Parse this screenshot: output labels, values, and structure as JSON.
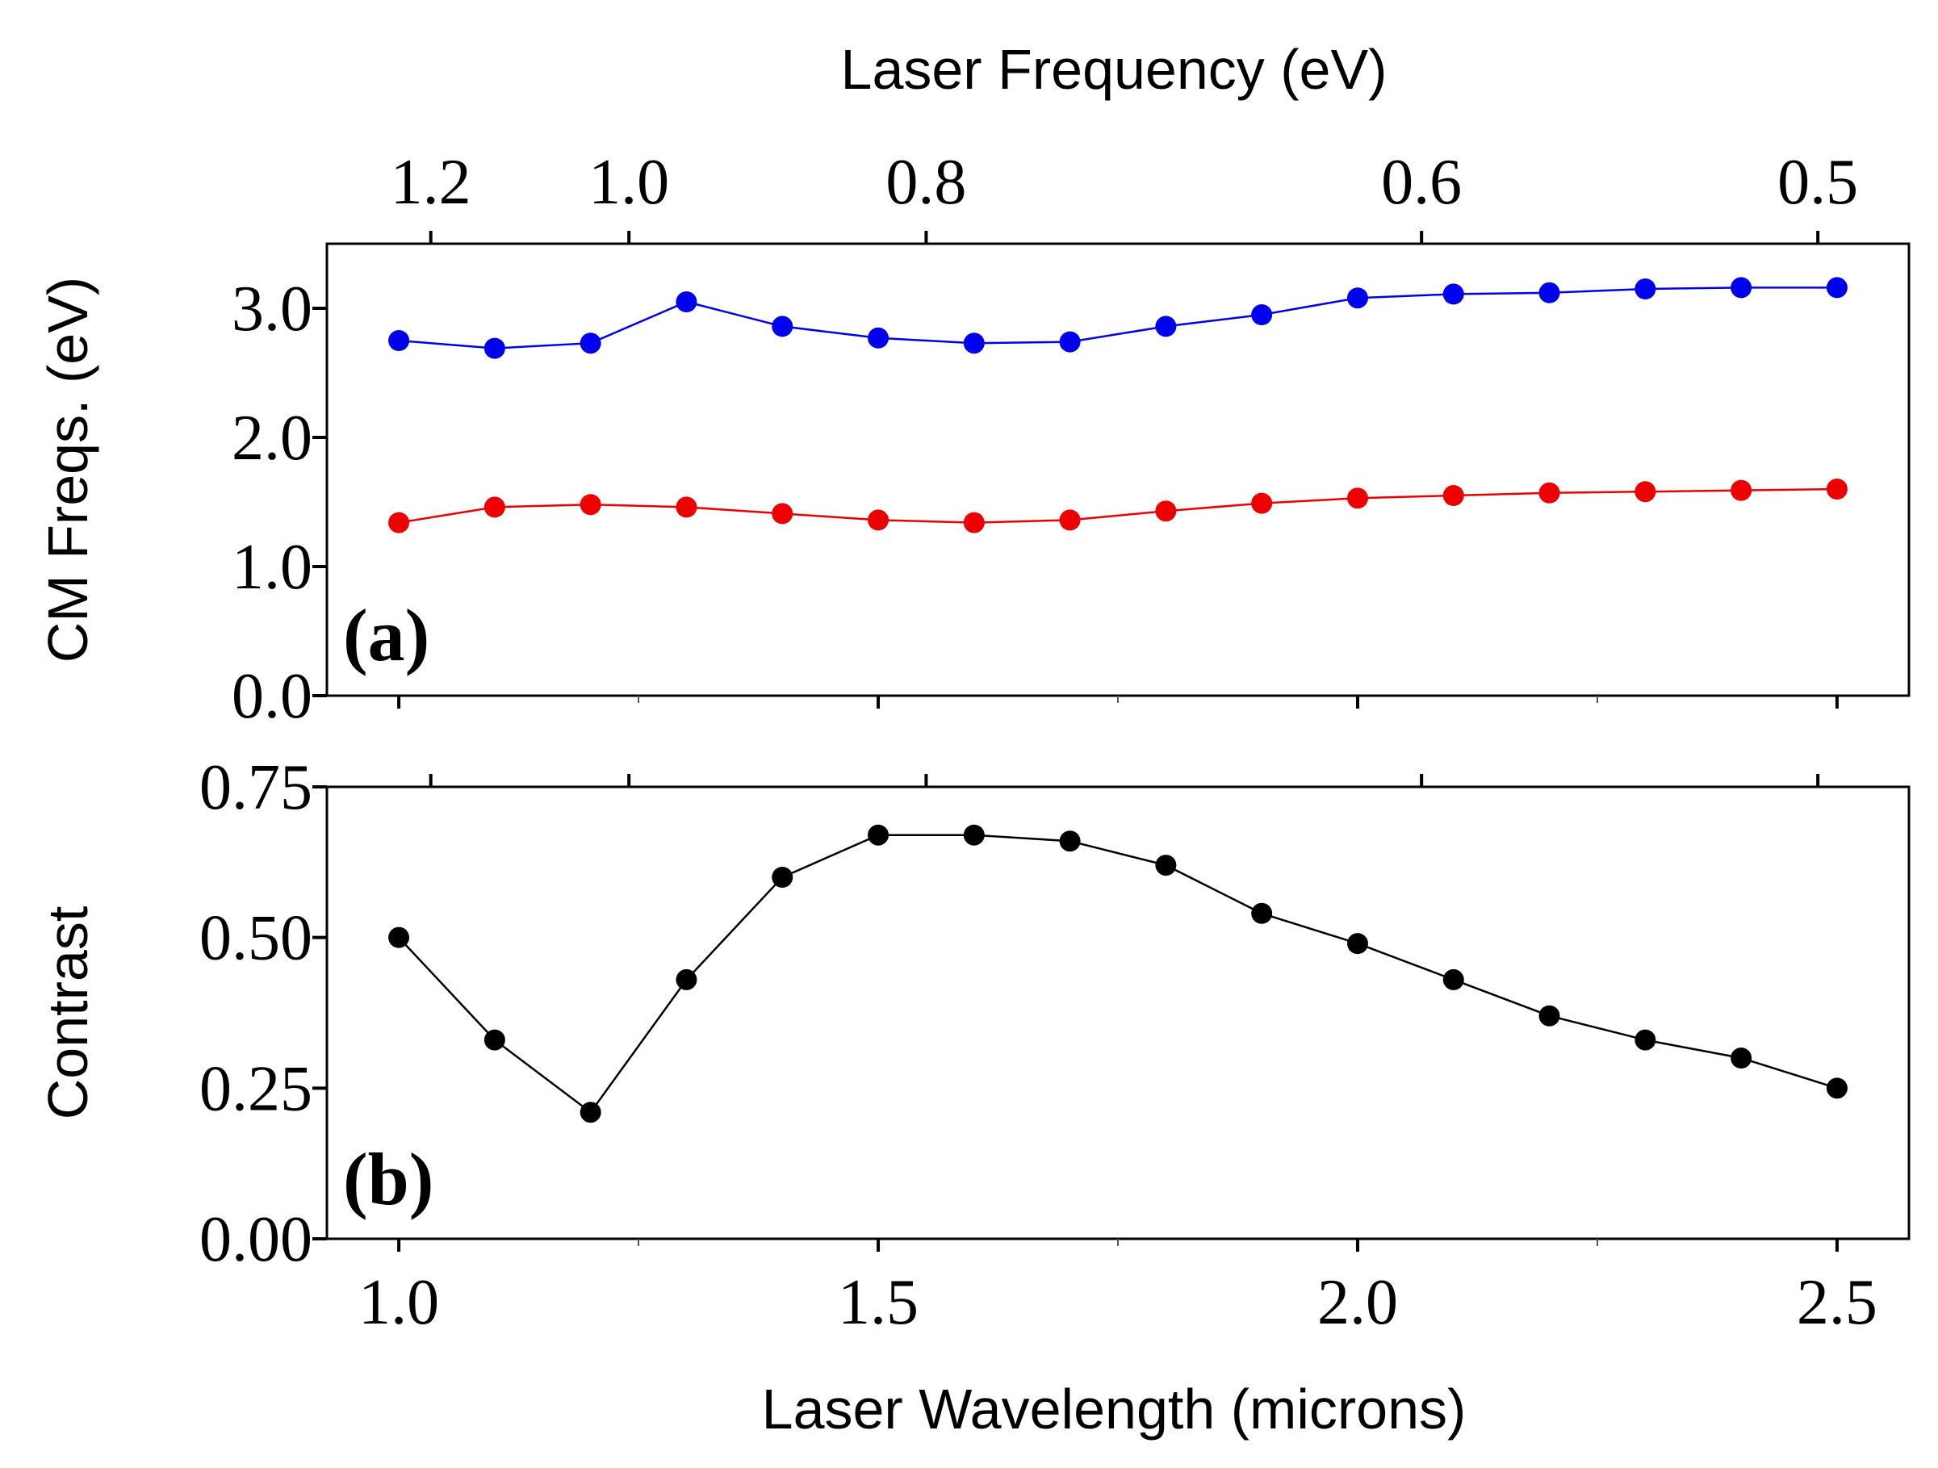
{
  "chart_data": [
    {
      "id": "panel-a",
      "type": "line",
      "panel_label": "(a)",
      "xlabel_top": "Laser Frequency (eV)",
      "top_ticks": [
        "1.2",
        "1.0",
        "0.8",
        "0.6",
        "0.5"
      ],
      "top_tick_values": [
        1.2,
        1.0,
        0.8,
        0.6,
        0.5
      ],
      "ylabel": "CM Freqs. (eV)",
      "xlim": [
        0.925,
        2.575
      ],
      "ylim": [
        0.0,
        3.5
      ],
      "yticks": [
        "0.0",
        "1.0",
        "2.0",
        "3.0"
      ],
      "ytick_values": [
        0.0,
        1.0,
        2.0,
        3.0
      ],
      "x": [
        1.0,
        1.1,
        1.2,
        1.3,
        1.4,
        1.5,
        1.6,
        1.7,
        1.8,
        1.9,
        2.0,
        2.1,
        2.2,
        2.3,
        2.4,
        2.5
      ],
      "series": [
        {
          "name": "upper CM frequency",
          "color": "#0000ee",
          "values": [
            2.75,
            2.69,
            2.73,
            3.05,
            2.86,
            2.77,
            2.73,
            2.74,
            2.86,
            2.95,
            3.08,
            3.11,
            3.12,
            3.15,
            3.16,
            3.16
          ]
        },
        {
          "name": "lower CM frequency",
          "color": "#ee0000",
          "values": [
            1.34,
            1.46,
            1.48,
            1.46,
            1.41,
            1.36,
            1.34,
            1.36,
            1.43,
            1.49,
            1.53,
            1.55,
            1.57,
            1.58,
            1.59,
            1.6
          ]
        }
      ]
    },
    {
      "id": "panel-b",
      "type": "line",
      "panel_label": "(b)",
      "ylabel": "Contrast",
      "xlabel": "Laser Wavelength (microns)",
      "xlim": [
        0.925,
        2.575
      ],
      "ylim": [
        0.0,
        0.75
      ],
      "xticks": [
        "1.0",
        "1.5",
        "2.0",
        "2.5"
      ],
      "xtick_values": [
        1.0,
        1.5,
        2.0,
        2.5
      ],
      "yticks": [
        "0.00",
        "0.25",
        "0.50",
        "0.75"
      ],
      "ytick_values": [
        0.0,
        0.25,
        0.5,
        0.75
      ],
      "x": [
        1.0,
        1.1,
        1.2,
        1.3,
        1.4,
        1.5,
        1.6,
        1.7,
        1.8,
        1.9,
        2.0,
        2.1,
        2.2,
        2.3,
        2.4,
        2.5
      ],
      "series": [
        {
          "name": "contrast",
          "color": "#000000",
          "values": [
            0.5,
            0.33,
            0.21,
            0.43,
            0.6,
            0.67,
            0.67,
            0.66,
            0.62,
            0.54,
            0.49,
            0.43,
            0.37,
            0.33,
            0.3,
            0.25
          ]
        }
      ]
    }
  ]
}
